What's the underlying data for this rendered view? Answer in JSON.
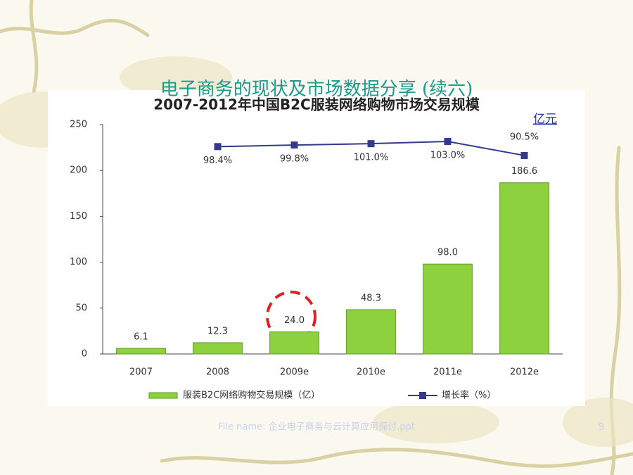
{
  "slide": {
    "title": "电子商务的现状及市场数据分享 (续六)",
    "unit": "亿元",
    "footer": "File name: 企业电子商务与云计算应用探讨.ppt",
    "page": "9"
  },
  "chart_data": {
    "type": "bar",
    "title": "2007-2012年中国B2C服装网络购物市场交易规模",
    "categories": [
      "2007",
      "2008",
      "2009e",
      "2010e",
      "2011e",
      "2012e"
    ],
    "ylim": [
      0,
      250
    ],
    "yticks": [
      0,
      50,
      100,
      150,
      200,
      250
    ],
    "y2lim": [
      -86,
      118
    ],
    "series": [
      {
        "name": "服装B2C网络购物交易规模（亿）",
        "color": "#8dd13f",
        "values": [
          6.1,
          12.3,
          24.0,
          48.3,
          98.0,
          186.6
        ],
        "value_labels": [
          "6.1",
          "12.3",
          "24.0",
          "48.3",
          "98.0",
          "186.6"
        ]
      },
      {
        "name": "增长率（%）",
        "type": "line",
        "axis": "y2",
        "color": "#333a8c",
        "values": [
          null,
          98.4,
          99.8,
          101.0,
          103.0,
          90.5
        ],
        "value_labels": [
          null,
          "98.4%",
          "99.8%",
          "101.0%",
          "103.0%",
          "90.5%"
        ]
      }
    ]
  }
}
